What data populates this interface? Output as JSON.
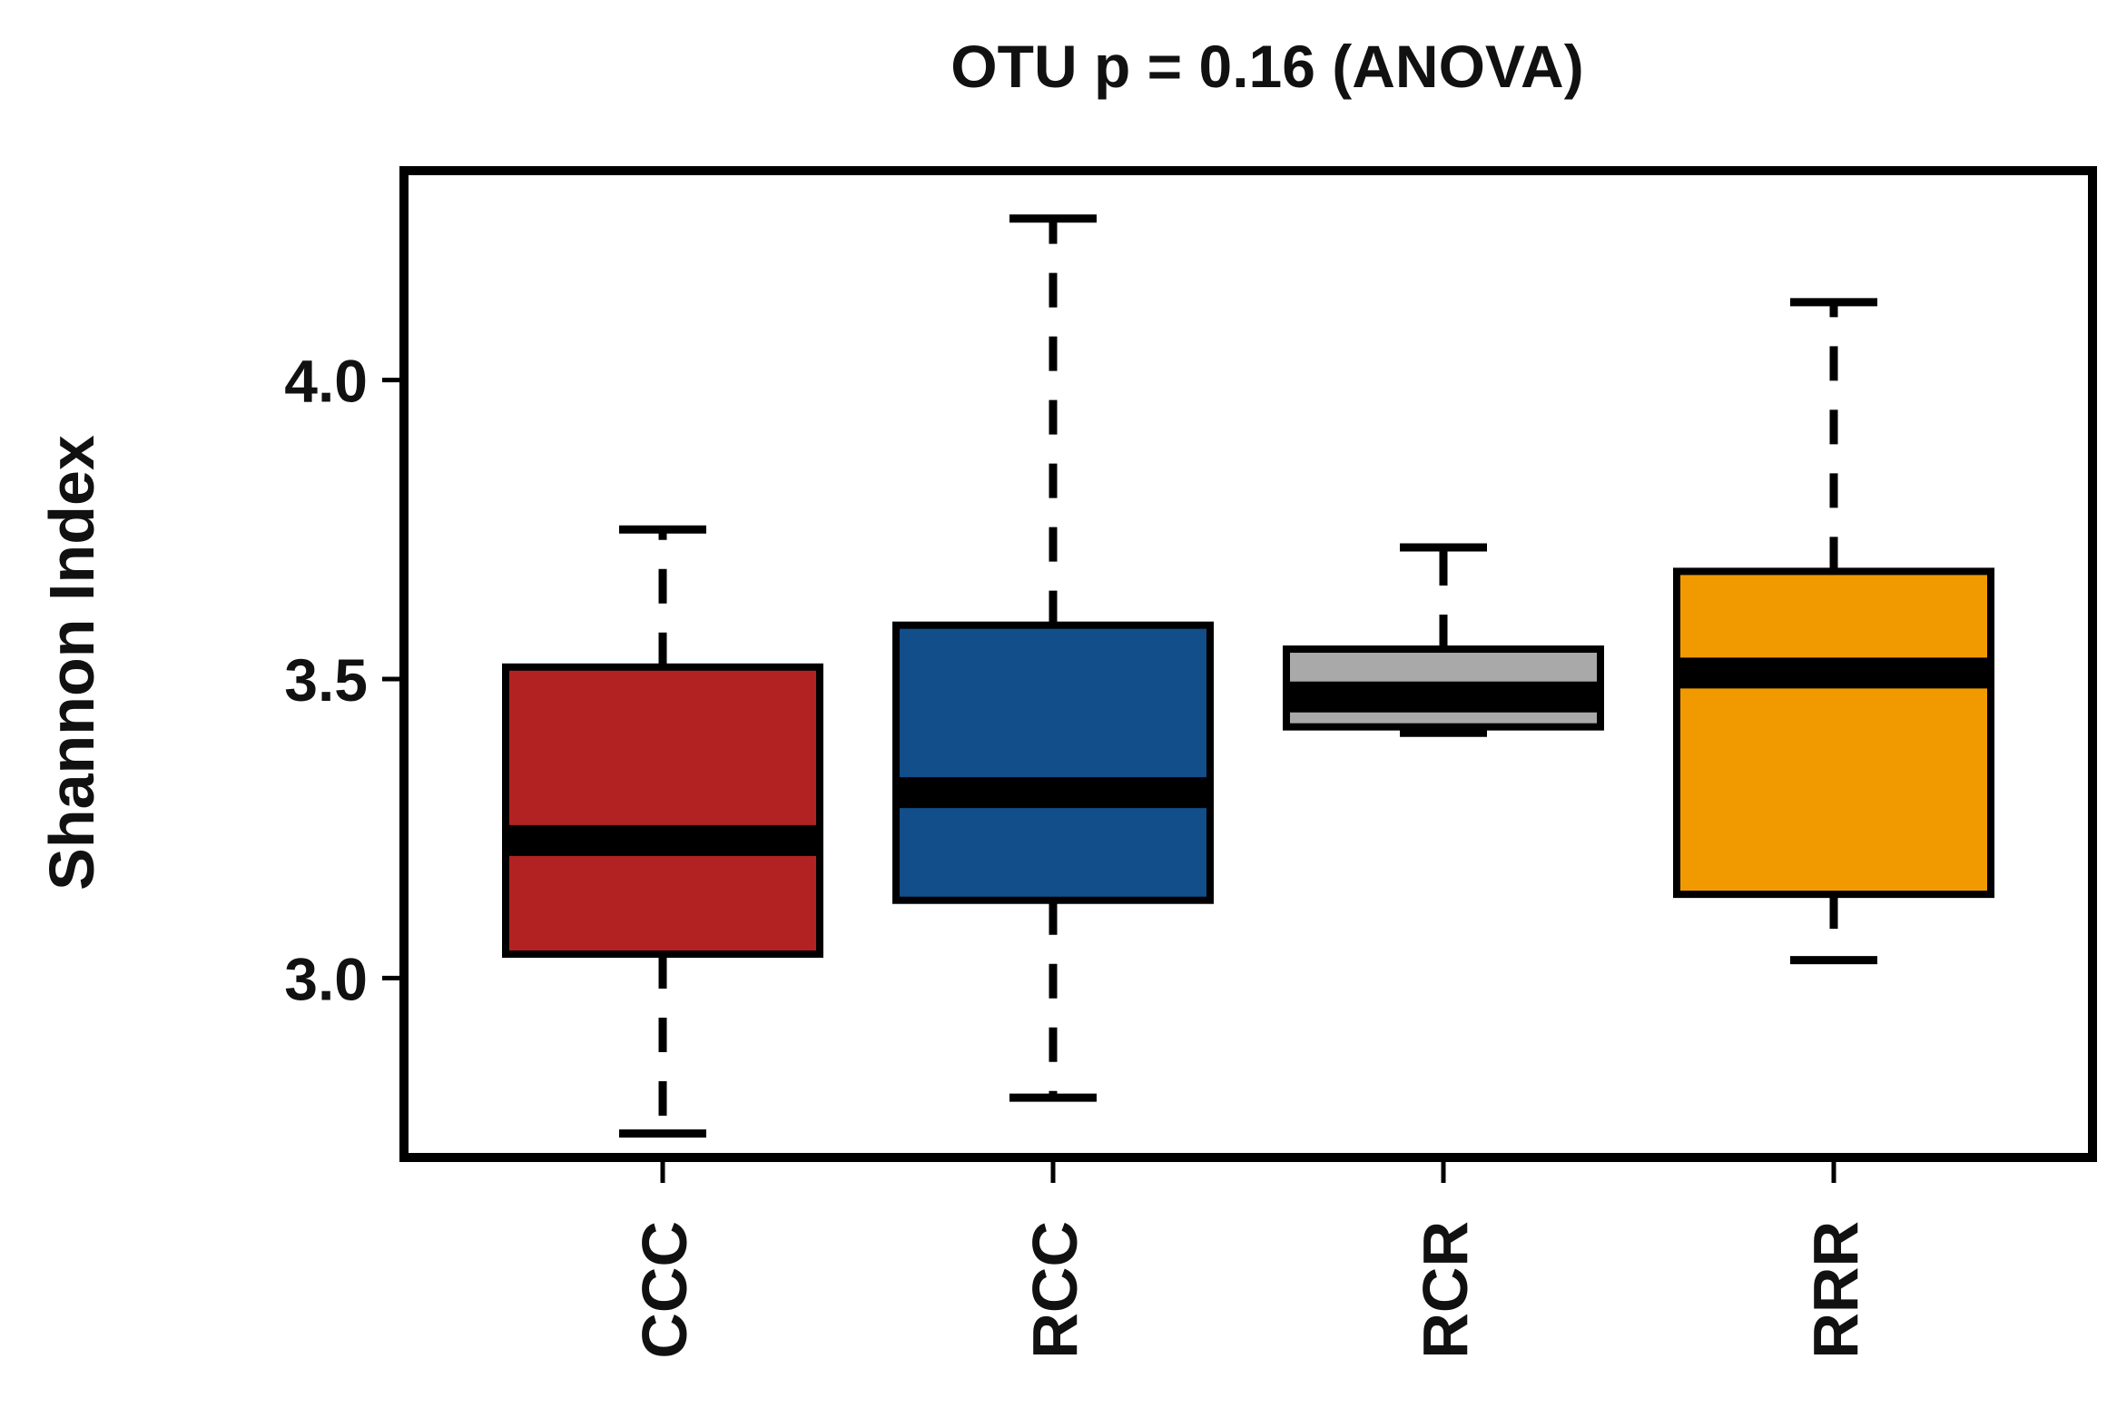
{
  "chart_data": {
    "type": "box",
    "title": "OTU p = 0.16 (ANOVA)",
    "xlabel": "",
    "ylabel": "Shannon Index",
    "ylim": [
      2.7,
      4.35
    ],
    "yticks": [
      3.0,
      3.5,
      4.0
    ],
    "ytick_labels": [
      "3.0",
      "3.5",
      "4.0"
    ],
    "grid": false,
    "legend": "none",
    "categories": [
      "CCC",
      "RCC",
      "RCR",
      "RRR"
    ],
    "boxes": [
      {
        "category": "CCC",
        "whisker_low": 2.74,
        "q1": 3.04,
        "median": 3.23,
        "q3": 3.52,
        "whisker_high": 3.75,
        "color": "#b22222"
      },
      {
        "category": "RCC",
        "whisker_low": 2.8,
        "q1": 3.13,
        "median": 3.31,
        "q3": 3.59,
        "whisker_high": 4.27,
        "color": "#124e8a"
      },
      {
        "category": "RCR",
        "whisker_low": 3.41,
        "q1": 3.42,
        "median": 3.47,
        "q3": 3.55,
        "whisker_high": 3.72,
        "color": "#a9a9a9"
      },
      {
        "category": "RRR",
        "whisker_low": 3.03,
        "q1": 3.14,
        "median": 3.51,
        "q3": 3.68,
        "whisker_high": 4.13,
        "color": "#f09a00"
      }
    ]
  }
}
